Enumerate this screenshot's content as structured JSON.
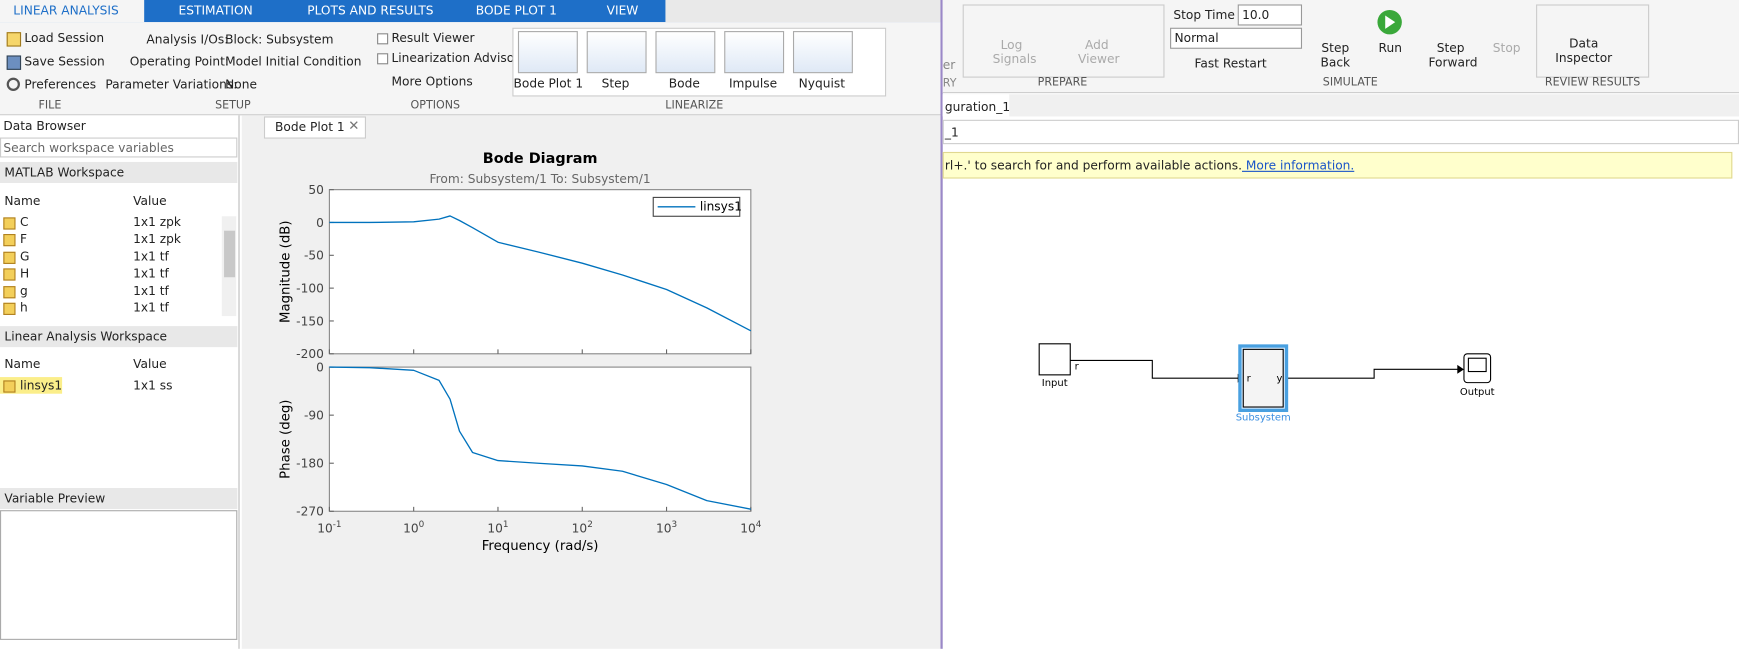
{
  "left_tabs": [
    "LINEAR ANALYSIS",
    "ESTIMATION",
    "PLOTS AND RESULTS",
    "BODE PLOT 1",
    "VIEW"
  ],
  "file": {
    "items": [
      "Load Session",
      "Save Session",
      "Preferences"
    ],
    "label": "FILE"
  },
  "setup": {
    "analysis_ios_label": "Analysis I/Os:",
    "analysis_ios": "Block: Subsystem",
    "operating_point_label": "Operating Point:",
    "operating_point": "Model Initial Condition",
    "param_label": "Parameter Variations:",
    "param": "None",
    "label": "SETUP"
  },
  "options": {
    "items": [
      "Result Viewer",
      "Linearization Advisor",
      "More Options"
    ],
    "label": "OPTIONS"
  },
  "linearize": {
    "items": [
      "Bode Plot 1",
      "Step",
      "Bode",
      "Impulse",
      "Nyquist"
    ],
    "label": "LINEARIZE"
  },
  "data_browser": {
    "title": "Data Browser",
    "search": "Search workspace variables",
    "matlab_ws": "MATLAB Workspace",
    "columns": [
      "Name",
      "Value"
    ],
    "rows": [
      [
        "C",
        "1x1 zpk"
      ],
      [
        "F",
        "1x1 zpk"
      ],
      [
        "G",
        "1x1 tf"
      ],
      [
        "H",
        "1x1 tf"
      ],
      [
        "g",
        "1x1 tf"
      ],
      [
        "h",
        "1x1 tf"
      ]
    ],
    "linear_ws": "Linear Analysis Workspace",
    "linear_rows": [
      [
        "linsys1",
        "1x1 ss"
      ]
    ],
    "preview": "Variable Preview"
  },
  "plot_tab": "Bode Plot 1",
  "chart_data": {
    "type": "bode",
    "title": "Bode Diagram",
    "subtitle": "From: Subsystem/1  To: Subsystem/1",
    "xlabel": "Frequency  (rad/s)",
    "log_x": true,
    "x": [
      0.1,
      0.3,
      1,
      2,
      2.7,
      3.5,
      5,
      10,
      30,
      100,
      300,
      1000,
      3000,
      10000
    ],
    "xlim": [
      0.1,
      10000
    ],
    "xticks": [
      {
        "value": 0.1,
        "label": "10",
        "exponent": "-1"
      },
      {
        "value": 1,
        "label": "10",
        "exponent": "0"
      },
      {
        "value": 10,
        "label": "10",
        "exponent": "1"
      },
      {
        "value": 100,
        "label": "10",
        "exponent": "2"
      },
      {
        "value": 1000,
        "label": "10",
        "exponent": "3"
      },
      {
        "value": 10000,
        "label": "10",
        "exponent": "4"
      }
    ],
    "series_name": "linsys1",
    "color": "#0072bd",
    "magnitude": {
      "ylabel": "Magnitude (dB)",
      "ylim": [
        -200,
        50
      ],
      "yticks": [
        50,
        0,
        -50,
        -100,
        -150,
        -200
      ],
      "values": [
        0,
        0,
        1,
        5,
        10,
        3,
        -8,
        -30,
        -45,
        -62,
        -80,
        -102,
        -130,
        -165
      ]
    },
    "phase": {
      "ylabel": "Phase (deg)",
      "ylim": [
        -270,
        0
      ],
      "yticks": [
        0,
        -90,
        -180,
        -270
      ],
      "values": [
        0,
        -1,
        -6,
        -25,
        -60,
        -120,
        -160,
        -175,
        -180,
        -185,
        -195,
        -220,
        -250,
        -266
      ]
    }
  },
  "simulink": {
    "cut_left": [
      "er",
      "RY"
    ],
    "log_signals": "Log Signals",
    "add_viewer": "Add Viewer",
    "prepare": "PREPARE",
    "stop_time_label": "Stop Time",
    "stop_time": "10.0",
    "mode": "Normal",
    "fast_restart": "Fast Restart",
    "step_back": "Step Back",
    "run": "Run",
    "step_forward": "Step Forward",
    "stop": "Stop",
    "simulate": "SIMULATE",
    "data_inspector": "Data Inspector",
    "review": "REVIEW RESULTS",
    "tab": "guration_1",
    "breadcrumb": "_1",
    "banner": "rl+.' to search for and perform available actions.",
    "banner_link": " More information.",
    "blocks": {
      "input": "Input",
      "subsystem": "Subsystem",
      "output": "Output",
      "port_r": "r",
      "port_in": "r",
      "port_out": "y"
    }
  }
}
